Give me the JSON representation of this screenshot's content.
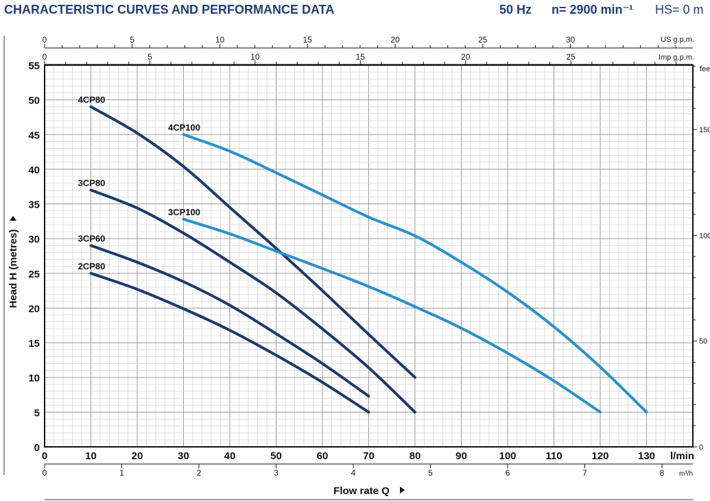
{
  "header": {
    "title": "CHARACTERISTIC CURVES AND PERFORMANCE DATA",
    "frequency": "50 Hz",
    "speed": "n= 2900 min⁻¹",
    "suction": "HS= 0 m"
  },
  "colors": {
    "header": "#1f3d7a",
    "cp80_series": "#1b3a6b",
    "cp100_series": "#2a90cc",
    "grid_major": "#9a9a9a",
    "grid_minor": "#d0d0d0"
  },
  "chart_data": {
    "type": "line",
    "title": "",
    "xlabel": "Flow rate Q",
    "ylabel": "Head H (metres)",
    "x_unit": "l/min",
    "xlim": [
      0,
      140
    ],
    "ylim": [
      0,
      55
    ],
    "grid": true,
    "x_ticks": [
      0,
      10,
      20,
      30,
      40,
      50,
      60,
      70,
      80,
      90,
      100,
      110,
      120,
      130
    ],
    "y_ticks": [
      0,
      5,
      10,
      15,
      20,
      25,
      30,
      35,
      40,
      45,
      50,
      55
    ],
    "secondary_axes": {
      "us_gpm": {
        "label": "US g.p.m.",
        "ticks": [
          0,
          5,
          10,
          15,
          20,
          25,
          30
        ]
      },
      "imp_gpm": {
        "label": "Imp g.p.m.",
        "ticks": [
          0,
          5,
          10,
          15,
          20,
          25
        ]
      },
      "m3h": {
        "label": "m³/h",
        "ticks": [
          0,
          1,
          2,
          3,
          4,
          5,
          6,
          7,
          8
        ]
      },
      "feet": {
        "label": "feet",
        "ticks": [
          0,
          50,
          100,
          150
        ]
      }
    },
    "series": [
      {
        "name": "4CP80",
        "color": "#1b3a6b",
        "points": [
          [
            10,
            49
          ],
          [
            20,
            45.2
          ],
          [
            30,
            40.4
          ],
          [
            40,
            34.5
          ],
          [
            50,
            28.6
          ],
          [
            60,
            22.5
          ],
          [
            70,
            16.2
          ],
          [
            80,
            10
          ]
        ]
      },
      {
        "name": "4CP100",
        "color": "#2a90cc",
        "points": [
          [
            30,
            45
          ],
          [
            40,
            42.6
          ],
          [
            50,
            39.5
          ],
          [
            60,
            36.3
          ],
          [
            70,
            33.1
          ],
          [
            80,
            30.4
          ],
          [
            90,
            26.6
          ],
          [
            100,
            22.3
          ],
          [
            110,
            17.3
          ],
          [
            120,
            11.5
          ],
          [
            130,
            5
          ]
        ]
      },
      {
        "name": "3CP80",
        "color": "#1b3a6b",
        "points": [
          [
            10,
            37
          ],
          [
            20,
            34.4
          ],
          [
            30,
            30.8
          ],
          [
            40,
            26.6
          ],
          [
            50,
            22.2
          ],
          [
            60,
            17.0
          ],
          [
            70,
            11.4
          ],
          [
            80,
            5
          ]
        ]
      },
      {
        "name": "3CP100",
        "color": "#2a90cc",
        "points": [
          [
            30,
            32.8
          ],
          [
            40,
            30.7
          ],
          [
            50,
            28.2
          ],
          [
            60,
            25.7
          ],
          [
            70,
            23.1
          ],
          [
            80,
            20.2
          ],
          [
            90,
            17.1
          ],
          [
            100,
            13.5
          ],
          [
            110,
            9.5
          ],
          [
            120,
            5
          ]
        ]
      },
      {
        "name": "3CP60",
        "color": "#1b3a6b",
        "points": [
          [
            10,
            29
          ],
          [
            20,
            26.6
          ],
          [
            30,
            23.8
          ],
          [
            40,
            20.4
          ],
          [
            50,
            16.3
          ],
          [
            60,
            12
          ],
          [
            70,
            7.3
          ]
        ]
      },
      {
        "name": "2CP80",
        "color": "#1b3a6b",
        "points": [
          [
            10,
            25
          ],
          [
            20,
            22.7
          ],
          [
            30,
            19.9
          ],
          [
            40,
            16.8
          ],
          [
            50,
            13.2
          ],
          [
            60,
            9.3
          ],
          [
            70,
            5
          ]
        ]
      }
    ]
  }
}
